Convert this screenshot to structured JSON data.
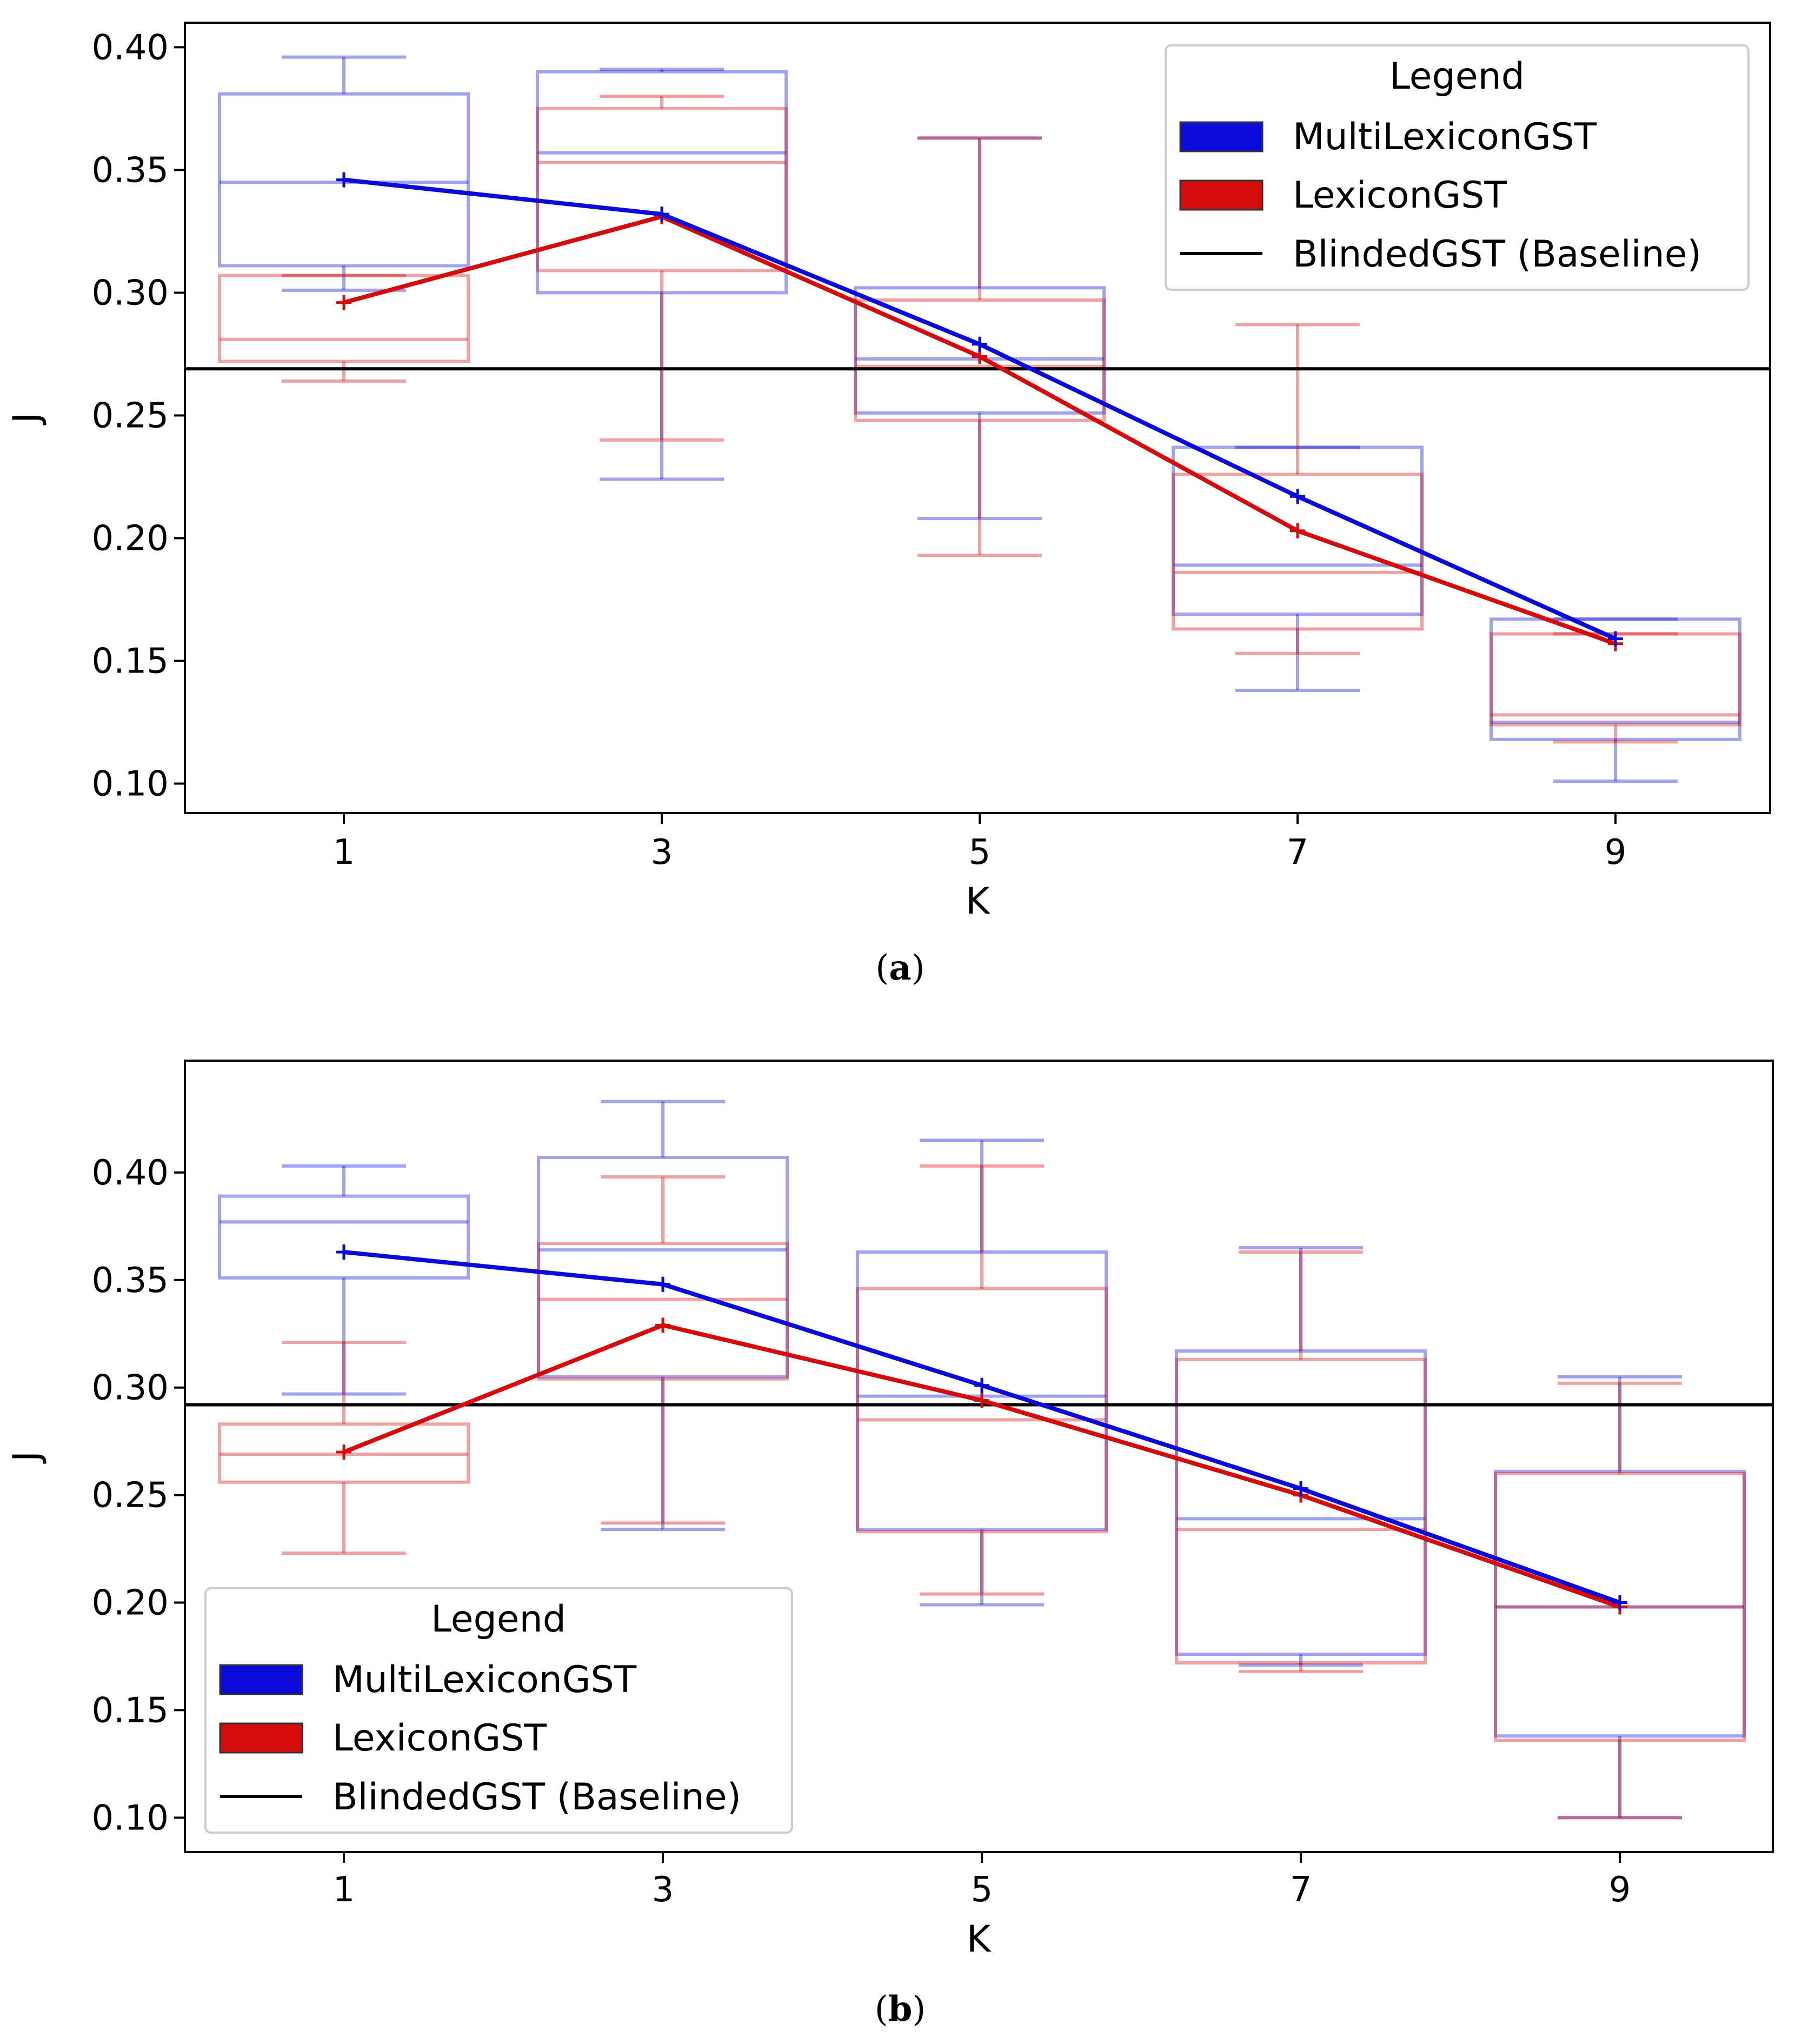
{
  "colors": {
    "multi": "#0a0adb",
    "lexicon": "#d60c0c",
    "baseline": "#000000"
  },
  "chart_data": [
    {
      "type": "box",
      "caption_label": "a",
      "xlabel": "K",
      "ylabel": "J",
      "categories": [
        "1",
        "3",
        "5",
        "7",
        "9"
      ],
      "ylim": [
        0.088,
        0.41
      ],
      "yticks": [
        0.1,
        0.15,
        0.2,
        0.25,
        0.3,
        0.35,
        0.4
      ],
      "ytick_labels": [
        "0.10",
        "0.15",
        "0.20",
        "0.25",
        "0.30",
        "0.35",
        "0.40"
      ],
      "baseline": 0.269,
      "legend": {
        "title": "Legend",
        "position": "top-right",
        "entries": [
          {
            "label": "MultiLexiconGST",
            "kind": "patch",
            "color": "multi"
          },
          {
            "label": "LexiconGST",
            "kind": "patch",
            "color": "lexicon"
          },
          {
            "label": "BlindedGST (Baseline)",
            "kind": "line",
            "color": "baseline"
          }
        ]
      },
      "series": [
        {
          "name": "MultiLexiconGST",
          "color": "multi",
          "means": [
            0.346,
            0.332,
            0.279,
            0.217,
            0.159
          ],
          "boxes": [
            {
              "whislo": 0.301,
              "q1": 0.311,
              "med": 0.345,
              "q3": 0.381,
              "whishi": 0.396
            },
            {
              "whislo": 0.224,
              "q1": 0.3,
              "med": 0.357,
              "q3": 0.39,
              "whishi": 0.391
            },
            {
              "whislo": 0.208,
              "q1": 0.251,
              "med": 0.273,
              "q3": 0.302,
              "whishi": 0.363
            },
            {
              "whislo": 0.138,
              "q1": 0.169,
              "med": 0.189,
              "q3": 0.237,
              "whishi": 0.237
            },
            {
              "whislo": 0.101,
              "q1": 0.118,
              "med": 0.125,
              "q3": 0.167,
              "whishi": 0.167
            }
          ]
        },
        {
          "name": "LexiconGST",
          "color": "lexicon",
          "means": [
            0.296,
            0.331,
            0.274,
            0.203,
            0.157
          ],
          "boxes": [
            {
              "whislo": 0.264,
              "q1": 0.272,
              "med": 0.281,
              "q3": 0.307,
              "whishi": 0.307
            },
            {
              "whislo": 0.24,
              "q1": 0.309,
              "med": 0.353,
              "q3": 0.375,
              "whishi": 0.38
            },
            {
              "whislo": 0.193,
              "q1": 0.248,
              "med": 0.27,
              "q3": 0.297,
              "whishi": 0.363
            },
            {
              "whislo": 0.153,
              "q1": 0.163,
              "med": 0.186,
              "q3": 0.226,
              "whishi": 0.287
            },
            {
              "whislo": 0.117,
              "q1": 0.124,
              "med": 0.128,
              "q3": 0.161,
              "whishi": 0.161
            }
          ]
        }
      ]
    },
    {
      "type": "box",
      "caption_label": "b",
      "xlabel": "K",
      "ylabel": "J",
      "categories": [
        "1",
        "3",
        "5",
        "7",
        "9"
      ],
      "ylim": [
        0.084,
        0.452
      ],
      "yticks": [
        0.1,
        0.15,
        0.2,
        0.25,
        0.3,
        0.35,
        0.4
      ],
      "ytick_labels": [
        "0.10",
        "0.15",
        "0.20",
        "0.25",
        "0.30",
        "0.35",
        "0.40"
      ],
      "baseline": 0.292,
      "legend": {
        "title": "Legend",
        "position": "lower-left",
        "entries": [
          {
            "label": "MultiLexiconGST",
            "kind": "patch",
            "color": "multi"
          },
          {
            "label": "LexiconGST",
            "kind": "patch",
            "color": "lexicon"
          },
          {
            "label": "BlindedGST (Baseline)",
            "kind": "line",
            "color": "baseline"
          }
        ]
      },
      "series": [
        {
          "name": "MultiLexiconGST",
          "color": "multi",
          "means": [
            0.363,
            0.348,
            0.301,
            0.253,
            0.2
          ],
          "boxes": [
            {
              "whislo": 0.297,
              "q1": 0.351,
              "med": 0.377,
              "q3": 0.389,
              "whishi": 0.403
            },
            {
              "whislo": 0.234,
              "q1": 0.305,
              "med": 0.364,
              "q3": 0.407,
              "whishi": 0.433
            },
            {
              "whislo": 0.199,
              "q1": 0.234,
              "med": 0.296,
              "q3": 0.363,
              "whishi": 0.415
            },
            {
              "whislo": 0.171,
              "q1": 0.176,
              "med": 0.239,
              "q3": 0.317,
              "whishi": 0.365
            },
            {
              "whislo": 0.1,
              "q1": 0.138,
              "med": 0.198,
              "q3": 0.261,
              "whishi": 0.305
            }
          ]
        },
        {
          "name": "LexiconGST",
          "color": "lexicon",
          "means": [
            0.27,
            0.329,
            0.294,
            0.25,
            0.198
          ],
          "boxes": [
            {
              "whislo": 0.223,
              "q1": 0.256,
              "med": 0.269,
              "q3": 0.283,
              "whishi": 0.321
            },
            {
              "whislo": 0.237,
              "q1": 0.304,
              "med": 0.341,
              "q3": 0.367,
              "whishi": 0.398
            },
            {
              "whislo": 0.204,
              "q1": 0.233,
              "med": 0.285,
              "q3": 0.346,
              "whishi": 0.403
            },
            {
              "whislo": 0.168,
              "q1": 0.172,
              "med": 0.234,
              "q3": 0.313,
              "whishi": 0.363
            },
            {
              "whislo": 0.1,
              "q1": 0.136,
              "med": 0.198,
              "q3": 0.26,
              "whishi": 0.302
            }
          ]
        }
      ]
    }
  ]
}
